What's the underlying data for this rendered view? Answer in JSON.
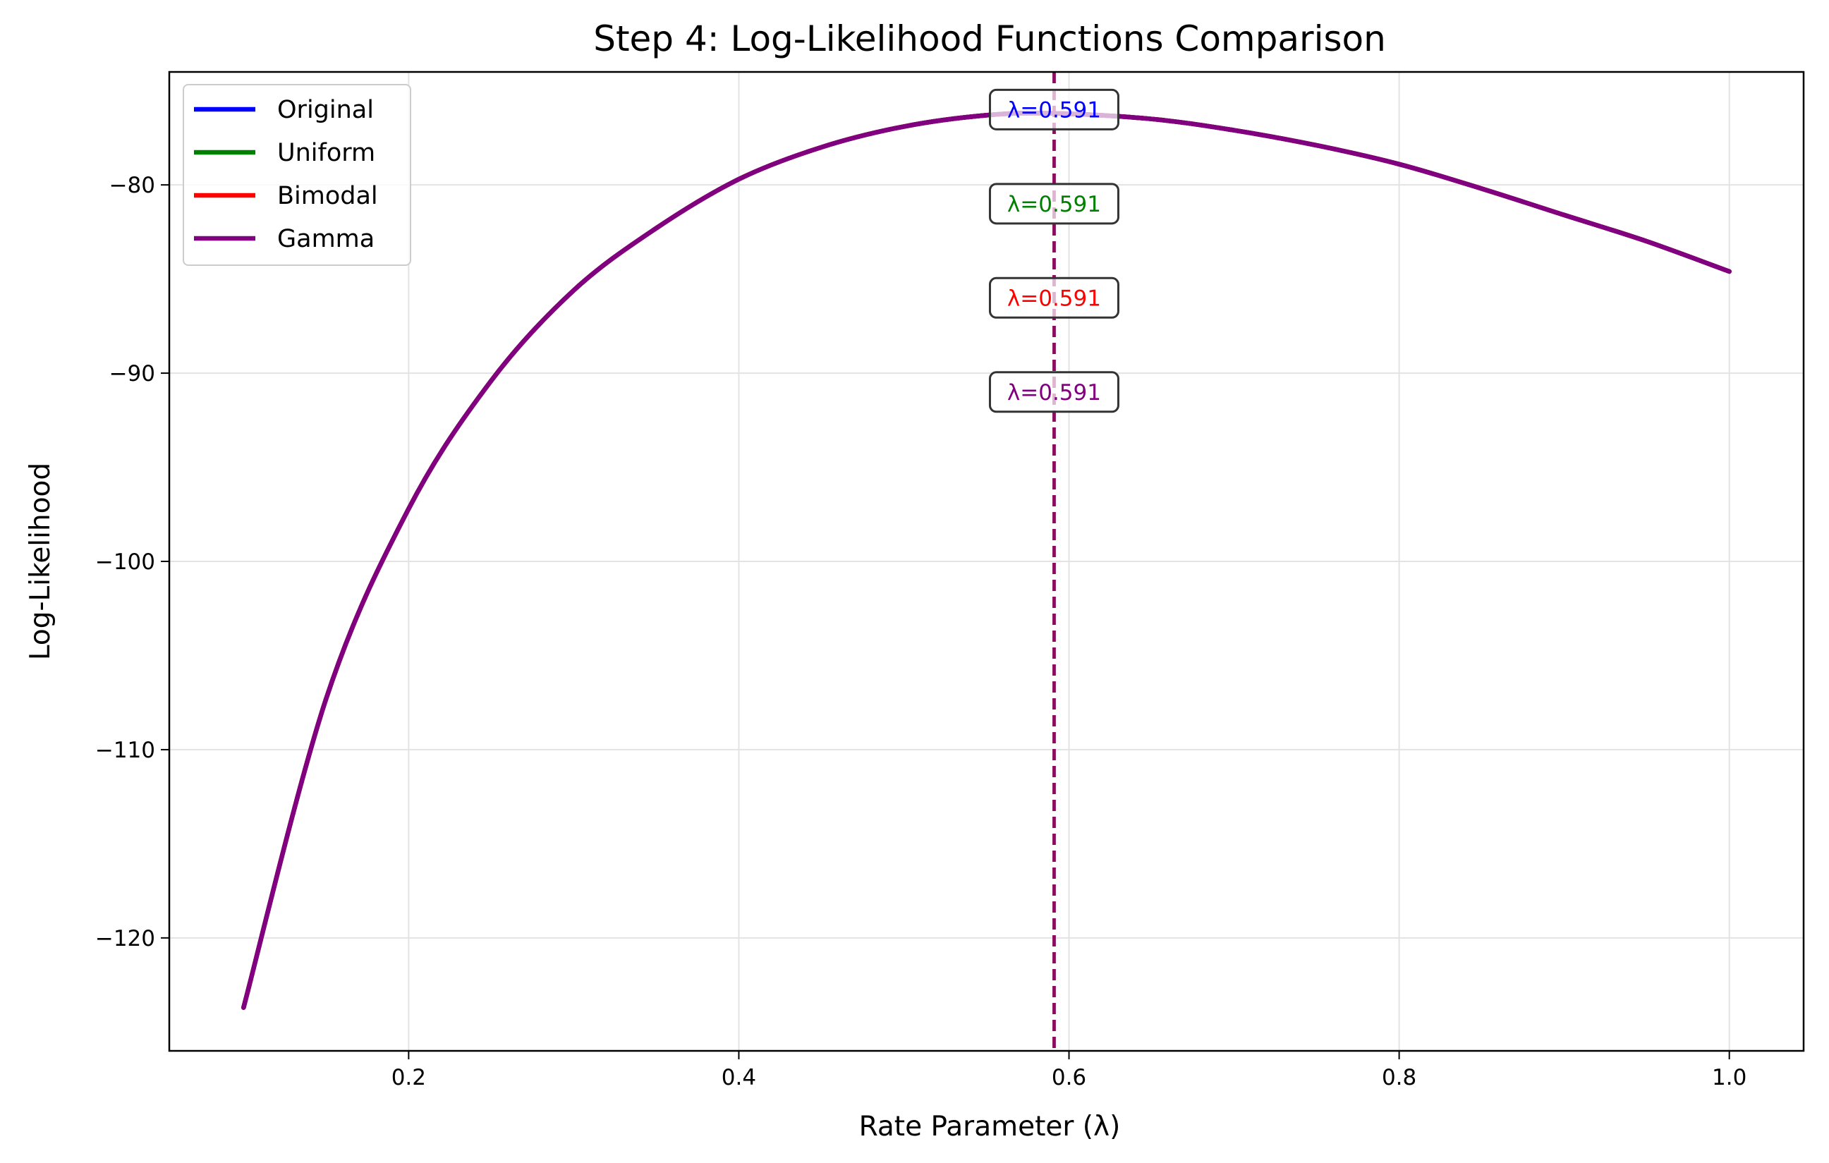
{
  "chart_data": {
    "type": "line",
    "title": "Step 4: Log-Likelihood Functions Comparison",
    "xlabel": "Rate Parameter (λ)",
    "ylabel": "Log-Likelihood",
    "xlim": [
      0.055,
      1.045
    ],
    "ylim": [
      -126,
      -74
    ],
    "xticks": [
      0.2,
      0.4,
      0.6,
      0.8,
      1.0
    ],
    "xtick_labels": [
      "0.2",
      "0.4",
      "0.6",
      "0.8",
      "1.0"
    ],
    "yticks": [
      -80,
      -90,
      -100,
      -110,
      -120
    ],
    "ytick_labels": [
      "−80",
      "−90",
      "−100",
      "−110",
      "−120"
    ],
    "grid": true,
    "legend_position": "top-left",
    "mle_lambda": 0.591,
    "x": [
      0.1,
      0.15,
      0.2,
      0.25,
      0.3,
      0.35,
      0.4,
      0.45,
      0.5,
      0.55,
      0.591,
      0.65,
      0.7,
      0.75,
      0.8,
      0.85,
      0.9,
      0.95,
      1.0
    ],
    "series": [
      {
        "name": "Original",
        "color": "#0000ff",
        "values": [
          -123.7,
          -107.3,
          -97.2,
          -90.4,
          -85.6,
          -82.3,
          -79.7,
          -78.0,
          -76.9,
          -76.3,
          -76.2,
          -76.5,
          -77.1,
          -77.9,
          -78.9,
          -80.2,
          -81.6,
          -83.0,
          -84.6
        ]
      },
      {
        "name": "Uniform",
        "color": "#008000",
        "values": [
          -123.7,
          -107.3,
          -97.2,
          -90.4,
          -85.6,
          -82.3,
          -79.7,
          -78.0,
          -76.9,
          -76.3,
          -76.2,
          -76.5,
          -77.1,
          -77.9,
          -78.9,
          -80.2,
          -81.6,
          -83.0,
          -84.6
        ]
      },
      {
        "name": "Bimodal",
        "color": "#ff0000",
        "values": [
          -123.7,
          -107.3,
          -97.2,
          -90.4,
          -85.6,
          -82.3,
          -79.7,
          -78.0,
          -76.9,
          -76.3,
          -76.2,
          -76.5,
          -77.1,
          -77.9,
          -78.9,
          -80.2,
          -81.6,
          -83.0,
          -84.6
        ]
      },
      {
        "name": "Gamma",
        "color": "#800080",
        "values": [
          -123.7,
          -107.3,
          -97.2,
          -90.4,
          -85.6,
          -82.3,
          -79.7,
          -78.0,
          -76.9,
          -76.3,
          -76.2,
          -76.5,
          -77.1,
          -77.9,
          -78.9,
          -80.2,
          -81.6,
          -83.0,
          -84.6
        ]
      }
    ],
    "annotations": [
      {
        "text": "λ=0.591",
        "color": "#0000ff",
        "y": -76.0
      },
      {
        "text": "λ=0.591",
        "color": "#008000",
        "y": -81.0
      },
      {
        "text": "λ=0.591",
        "color": "#ff0000",
        "y": -86.0
      },
      {
        "text": "λ=0.591",
        "color": "#800080",
        "y": -91.0
      }
    ]
  }
}
